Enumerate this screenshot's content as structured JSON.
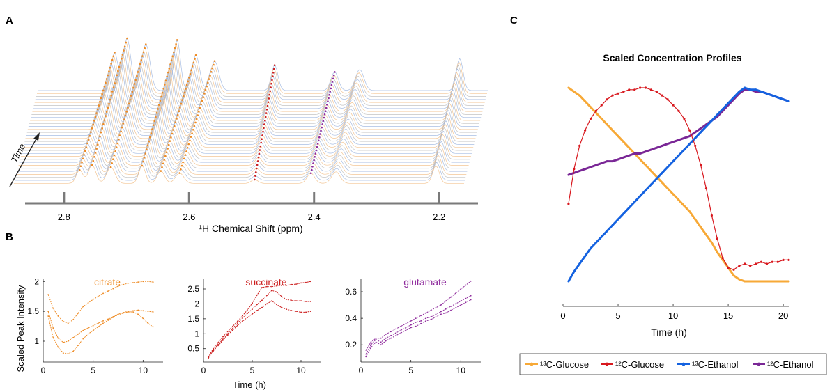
{
  "panel_labels": {
    "a": "A",
    "b": "B",
    "c": "C"
  },
  "colors": {
    "citrate": "#ee8a22",
    "succinate": "#cc1e1e",
    "glutamate": "#8e2a9c",
    "glucose13": "#f7a937",
    "glucose12": "#d8181e",
    "ethanol13": "#1462e0",
    "ethanol12": "#7a2796",
    "trace_gray": "#bdbdbd",
    "trace_orange": "#f2c089",
    "trace_blue": "#9fb7e0",
    "axis": "#7a7a7a"
  },
  "chart_data": [
    {
      "panel": "A",
      "type": "line",
      "title": "",
      "xlabel": "¹H Chemical Shift (ppm)",
      "ylabel": "Time",
      "x_reversed": true,
      "xlim": [
        2.14,
        2.86
      ],
      "ticks": [
        2.8,
        2.6,
        2.4,
        2.2
      ],
      "tick_labels": [
        "2.8",
        "2.6",
        "2.4",
        "2.2"
      ],
      "peaks": [
        {
          "ppm": 2.755,
          "height": 0.45,
          "metabolite": "citrate"
        },
        {
          "ppm": 2.735,
          "height": 0.62,
          "metabolite": "citrate"
        },
        {
          "ppm": 2.705,
          "height": 0.55,
          "metabolite": "citrate"
        },
        {
          "ppm": 2.655,
          "height": 0.6,
          "metabolite": "citrate"
        },
        {
          "ppm": 2.625,
          "height": 0.42,
          "metabolite": "citrate"
        },
        {
          "ppm": 2.595,
          "height": 0.35,
          "metabolite": "citrate"
        },
        {
          "ppm": 2.475,
          "height": 0.3,
          "metabolite": "succinate"
        },
        {
          "ppm": 2.385,
          "height": 0.22,
          "metabolite": "glutamate"
        },
        {
          "ppm": 2.345,
          "height": 0.25,
          "metabolite": ""
        },
        {
          "ppm": 2.185,
          "height": 0.38,
          "metabolite": ""
        }
      ]
    },
    {
      "panel": "B",
      "type": "line",
      "ylabel": "Scaled Peak Intensity",
      "xlabel": "Time (h)",
      "subplots": [
        {
          "title": "citrate",
          "xlim": [
            0,
            12
          ],
          "ylim": [
            0.65,
            2.05
          ],
          "xticks": [
            0,
            5,
            10
          ],
          "yticks": [
            1,
            1.5,
            2
          ],
          "ytick_labels": [
            "1",
            "1.5",
            "2"
          ],
          "x": [
            0.5,
            1,
            1.5,
            2,
            2.5,
            3,
            3.5,
            4,
            4.5,
            5,
            5.5,
            6,
            6.5,
            7,
            7.5,
            8,
            8.5,
            9,
            9.5,
            10,
            10.5,
            11
          ],
          "series": [
            {
              "values": [
                1.78,
                1.55,
                1.42,
                1.33,
                1.3,
                1.36,
                1.47,
                1.58,
                1.64,
                1.7,
                1.75,
                1.8,
                1.84,
                1.88,
                1.92,
                1.95,
                1.97,
                1.98,
                1.99,
                2.0,
                2.0,
                1.99
              ]
            },
            {
              "values": [
                1.5,
                1.22,
                1.05,
                0.98,
                1.0,
                1.06,
                1.12,
                1.18,
                1.22,
                1.26,
                1.3,
                1.34,
                1.37,
                1.41,
                1.45,
                1.48,
                1.5,
                1.51,
                1.52,
                1.51,
                1.5,
                1.49
              ]
            },
            {
              "values": [
                1.42,
                1.06,
                0.9,
                0.8,
                0.79,
                0.83,
                0.93,
                1.04,
                1.12,
                1.18,
                1.24,
                1.3,
                1.35,
                1.4,
                1.44,
                1.47,
                1.49,
                1.49,
                1.45,
                1.38,
                1.3,
                1.24
              ]
            }
          ]
        },
        {
          "title": "succinate",
          "xlim": [
            0,
            12
          ],
          "ylim": [
            0.05,
            2.85
          ],
          "xticks": [
            0,
            5,
            10
          ],
          "yticks": [
            0.5,
            1,
            1.5,
            2,
            2.5
          ],
          "ytick_labels": [
            "0.5",
            "1",
            "1.5",
            "2",
            "2.5"
          ],
          "x": [
            0.5,
            1,
            1.5,
            2,
            2.5,
            3,
            3.5,
            4,
            4.5,
            5,
            5.5,
            6,
            6.5,
            7,
            7.5,
            8,
            8.5,
            9,
            9.5,
            10,
            10.5,
            11
          ],
          "series": [
            {
              "values": [
                0.22,
                0.5,
                0.7,
                0.9,
                1.08,
                1.25,
                1.42,
                1.6,
                1.8,
                2.02,
                2.3,
                2.55,
                2.58,
                2.58,
                2.6,
                2.62,
                2.62,
                2.65,
                2.66,
                2.7,
                2.72,
                2.75
              ]
            },
            {
              "values": [
                0.2,
                0.46,
                0.64,
                0.82,
                1.0,
                1.18,
                1.36,
                1.52,
                1.68,
                1.82,
                1.98,
                2.12,
                2.28,
                2.45,
                2.4,
                2.25,
                2.15,
                2.12,
                2.1,
                2.1,
                2.08,
                2.08
              ]
            },
            {
              "values": [
                0.18,
                0.42,
                0.6,
                0.78,
                0.96,
                1.12,
                1.28,
                1.42,
                1.54,
                1.66,
                1.78,
                1.88,
                2.0,
                2.1,
                1.98,
                1.88,
                1.82,
                1.78,
                1.75,
                1.72,
                1.72,
                1.75
              ]
            }
          ]
        },
        {
          "title": "glutamate",
          "xlim": [
            0,
            12
          ],
          "ylim": [
            0.07,
            0.7
          ],
          "xticks": [
            0,
            5,
            10
          ],
          "yticks": [
            0.2,
            0.4,
            0.6
          ],
          "ytick_labels": [
            "0.2",
            "0.4",
            "0.6"
          ],
          "x": [
            0.5,
            1,
            1.5,
            2,
            2.5,
            3,
            3.5,
            4,
            4.5,
            5,
            5.5,
            6,
            6.5,
            7,
            7.5,
            8,
            8.5,
            9,
            9.5,
            10,
            10.5,
            11
          ],
          "series": [
            {
              "values": [
                0.16,
                0.22,
                0.25,
                0.25,
                0.28,
                0.3,
                0.32,
                0.34,
                0.36,
                0.38,
                0.4,
                0.42,
                0.44,
                0.46,
                0.48,
                0.5,
                0.53,
                0.56,
                0.59,
                0.62,
                0.65,
                0.68
              ]
            },
            {
              "values": [
                0.13,
                0.2,
                0.24,
                0.22,
                0.25,
                0.27,
                0.29,
                0.31,
                0.33,
                0.35,
                0.37,
                0.38,
                0.4,
                0.41,
                0.43,
                0.45,
                0.47,
                0.49,
                0.51,
                0.53,
                0.55,
                0.57
              ]
            },
            {
              "values": [
                0.11,
                0.18,
                0.22,
                0.2,
                0.23,
                0.25,
                0.27,
                0.29,
                0.31,
                0.33,
                0.34,
                0.36,
                0.38,
                0.39,
                0.41,
                0.43,
                0.44,
                0.46,
                0.48,
                0.5,
                0.52,
                0.54
              ]
            }
          ]
        }
      ]
    },
    {
      "panel": "C",
      "type": "line",
      "title": "Scaled Concentration Profiles",
      "xlabel": "Time (h)",
      "ylabel": "",
      "xlim": [
        0,
        20.5
      ],
      "ylim": [
        0,
        1
      ],
      "xticks": [
        0,
        5,
        10,
        15,
        20
      ],
      "x": [
        0.5,
        1,
        1.5,
        2,
        2.5,
        3,
        3.5,
        4,
        4.5,
        5,
        5.5,
        6,
        6.5,
        7,
        7.5,
        8,
        8.5,
        9,
        9.5,
        10,
        10.5,
        11,
        11.5,
        12,
        12.5,
        13,
        13.5,
        14,
        14.5,
        15,
        15.5,
        16,
        16.5,
        17,
        17.5,
        18,
        18.5,
        19,
        19.5,
        20,
        20.5
      ],
      "series": [
        {
          "name": "¹³C-Glucose",
          "values": [
            1.0,
            0.98,
            0.96,
            0.93,
            0.9,
            0.87,
            0.84,
            0.81,
            0.78,
            0.75,
            0.72,
            0.69,
            0.66,
            0.63,
            0.6,
            0.57,
            0.54,
            0.51,
            0.48,
            0.45,
            0.42,
            0.39,
            0.36,
            0.32,
            0.28,
            0.24,
            0.2,
            0.15,
            0.11,
            0.07,
            0.03,
            0.01,
            0.0,
            0.0,
            0.0,
            0.0,
            0.0,
            0.0,
            0.0,
            0.0,
            0.0
          ]
        },
        {
          "name": "¹²C-Glucose",
          "values": [
            0.4,
            0.58,
            0.7,
            0.78,
            0.84,
            0.88,
            0.91,
            0.94,
            0.96,
            0.97,
            0.98,
            0.99,
            0.99,
            1.0,
            1.0,
            0.99,
            0.98,
            0.96,
            0.94,
            0.91,
            0.88,
            0.84,
            0.78,
            0.7,
            0.6,
            0.48,
            0.34,
            0.22,
            0.12,
            0.07,
            0.06,
            0.08,
            0.09,
            0.08,
            0.09,
            0.1,
            0.09,
            0.1,
            0.1,
            0.11,
            0.11
          ]
        },
        {
          "name": "¹³C-Ethanol",
          "values": [
            0.0,
            0.05,
            0.09,
            0.13,
            0.17,
            0.2,
            0.23,
            0.26,
            0.29,
            0.32,
            0.35,
            0.38,
            0.41,
            0.44,
            0.47,
            0.5,
            0.53,
            0.56,
            0.59,
            0.62,
            0.65,
            0.68,
            0.71,
            0.74,
            0.77,
            0.8,
            0.83,
            0.86,
            0.89,
            0.92,
            0.95,
            0.98,
            1.0,
            0.99,
            0.99,
            0.98,
            0.97,
            0.96,
            0.95,
            0.94,
            0.93
          ]
        },
        {
          "name": "¹²C-Ethanol",
          "values": [
            0.55,
            0.56,
            0.57,
            0.58,
            0.59,
            0.6,
            0.61,
            0.62,
            0.62,
            0.63,
            0.64,
            0.65,
            0.66,
            0.66,
            0.67,
            0.68,
            0.69,
            0.7,
            0.71,
            0.72,
            0.73,
            0.74,
            0.75,
            0.77,
            0.79,
            0.81,
            0.83,
            0.85,
            0.88,
            0.91,
            0.94,
            0.97,
            0.99,
            0.99,
            0.98,
            0.98,
            0.97,
            0.96,
            0.95,
            0.94,
            0.93
          ]
        }
      ],
      "legend": {
        "placement": "bottom",
        "entries": [
          "¹³C-Glucose",
          "¹²C-Glucose",
          "¹³C-Ethanol",
          "¹²C-Ethanol"
        ]
      }
    }
  ]
}
